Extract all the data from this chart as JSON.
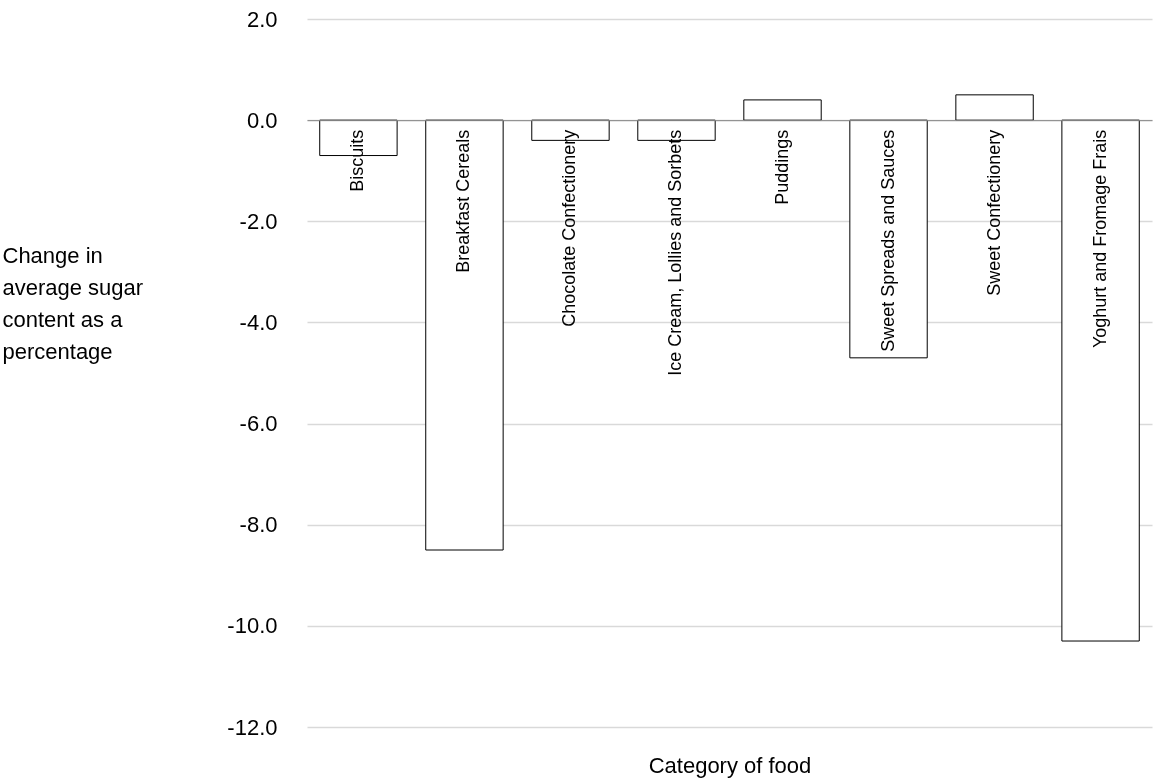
{
  "chart_data": {
    "type": "bar",
    "xlabel": "Category of food",
    "ylabel": "Change in average sugar content as a percentage",
    "categories": [
      "Biscuits",
      "Breakfast Cereals",
      "Chocolate Confectionery",
      "Ice Cream, Lollies and Sorbets",
      "Puddings",
      "Sweet Spreads and Sauces",
      "Sweet Confectionery",
      "Yoghurt and Fromage Frais"
    ],
    "values": [
      -0.7,
      -8.5,
      -0.4,
      -0.4,
      0.4,
      -4.7,
      0.5,
      -10.3
    ],
    "color": "#ffffff",
    "ylim": [
      -12,
      2
    ],
    "yticks": [
      {
        "value": 2,
        "label": "2.0"
      },
      {
        "value": 0,
        "label": "0.0"
      },
      {
        "value": -2,
        "label": "-2.0"
      },
      {
        "value": -4,
        "label": "-4.0"
      },
      {
        "value": -6,
        "label": "-6.0"
      },
      {
        "value": -8,
        "label": "-8.0"
      },
      {
        "value": -10,
        "label": "-10.0"
      },
      {
        "value": -12,
        "label": "-12.0"
      }
    ],
    "grid": "y"
  }
}
